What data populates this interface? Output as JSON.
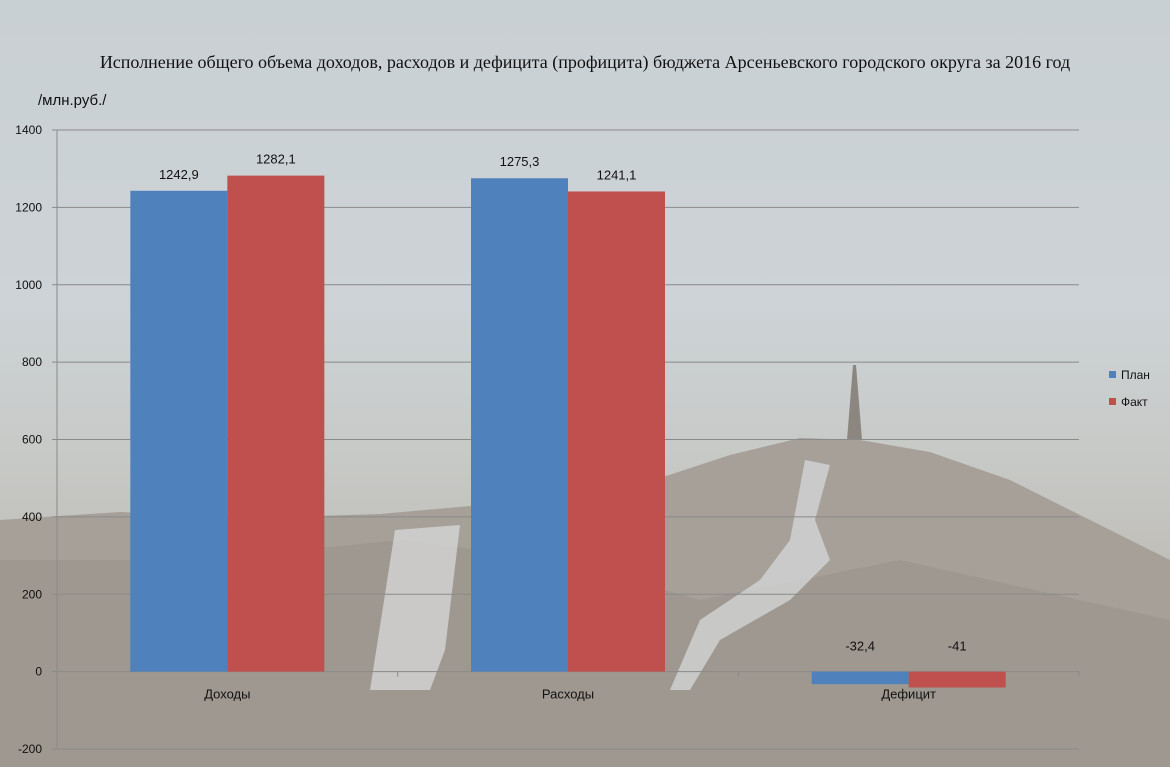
{
  "title": "Исполнение общего объема доходов, расходов и дефицита (профицита) бюджета Арсеньевского городского округа за 2016 год",
  "unit_label": "/млн.руб./",
  "colors": {
    "plan": "#4f81bd",
    "fact": "#c0504d",
    "grid": "#8a8a8a"
  },
  "chart_data": {
    "type": "bar",
    "categories": [
      "Доходы",
      "Расходы",
      "Дефицит"
    ],
    "series": [
      {
        "name": "План",
        "values": [
          1242.9,
          1275.3,
          -32.4
        ],
        "labels": [
          "1242,9",
          "1275,3",
          "-32,4"
        ]
      },
      {
        "name": "Факт",
        "values": [
          1282.1,
          1241.1,
          -41
        ],
        "labels": [
          "1282,1",
          "1241,1",
          "-41"
        ]
      }
    ],
    "ylim": [
      -200,
      1400
    ],
    "yticks": [
      -200,
      0,
      200,
      400,
      600,
      800,
      1000,
      1200,
      1400
    ],
    "grid": true,
    "legend_position": "right"
  }
}
